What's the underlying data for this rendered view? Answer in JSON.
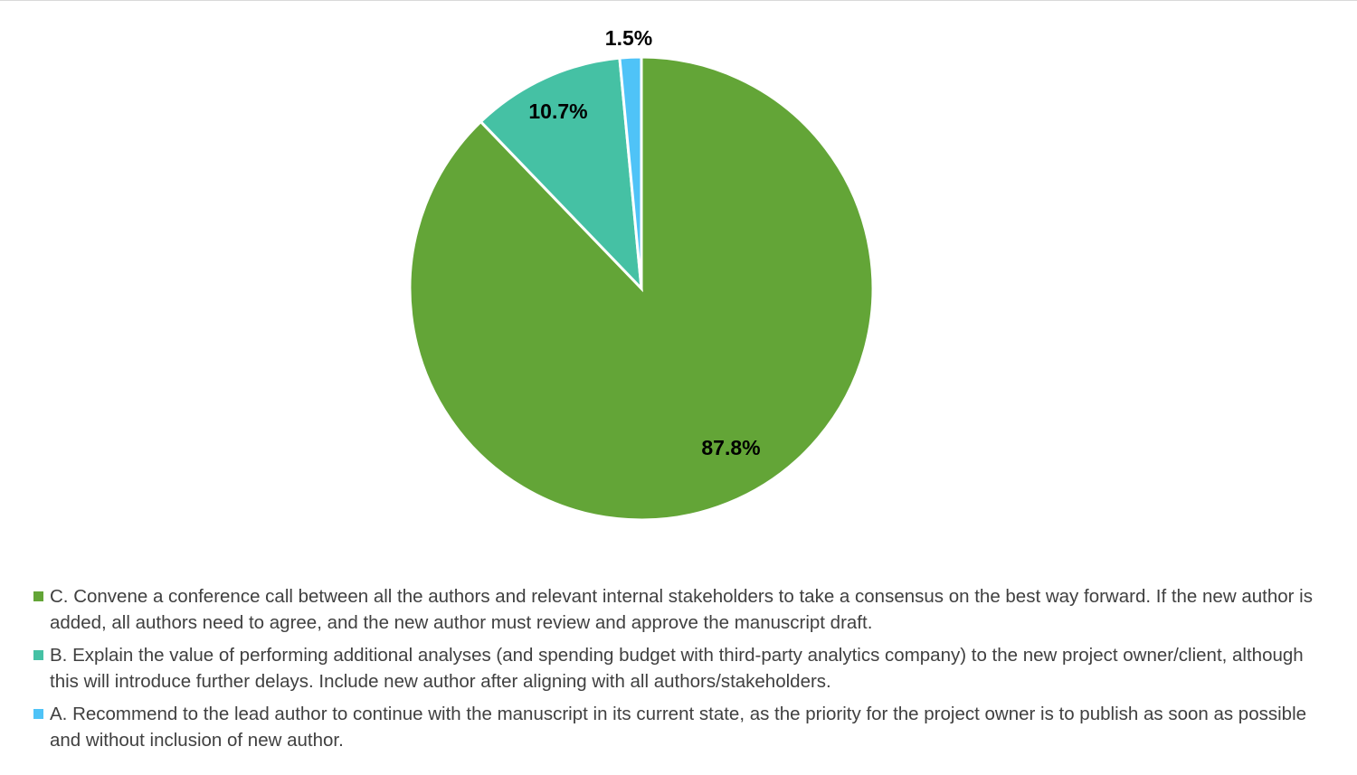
{
  "chart_data": {
    "type": "pie",
    "start_angle_deg": 0,
    "direction": "clockwise",
    "series": [
      {
        "label": "C. Convene a conference call between all the authors and relevant internal stakeholders to take a consensus on the best way forward. If the new author is added, all authors need to agree, and the new author must review and approve the manuscript draft.",
        "value": 87.8,
        "display": "87.8%",
        "color": "#63A537"
      },
      {
        "label": "B. Explain the value of performing additional analyses (and spending budget with third-party analytics company) to the new project owner/client, although this will introduce further delays. Include new author after aligning with all authors/stakeholders.",
        "value": 10.7,
        "display": "10.7%",
        "color": "#45C1A4"
      },
      {
        "label": "A. Recommend to the lead author to continue with the manuscript in its current state, as the priority for the project owner is to publish as soon as possible and without inclusion of new author.",
        "value": 1.5,
        "display": "1.5%",
        "color": "#4FC3F7"
      }
    ],
    "legend_position": "bottom"
  }
}
